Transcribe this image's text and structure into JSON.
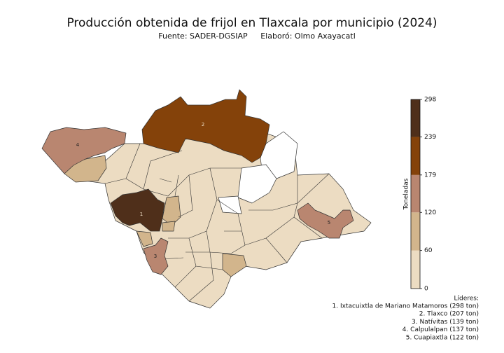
{
  "chart_data": {
    "type": "choropleth",
    "title": "Producción obtenida de frijol en Tlaxcala por municipio (2024)",
    "source": "Fuente: SADER-DGSIAP",
    "author": "Elaboró: Olmo Axayacatl",
    "colorbar": {
      "label": "Toneladas",
      "lim": [
        0,
        298
      ],
      "ticks": [
        0,
        60,
        120,
        179,
        239,
        298
      ],
      "colors": [
        "#ecdcc2",
        "#d2b58c",
        "#b98670",
        "#84420a",
        "#4f2f1a"
      ]
    },
    "leaders": {
      "title": "Líderes:",
      "items": [
        {
          "rank": 1,
          "label": "1. Ixtacuixtla de Mariano Matamoros (298 ton)",
          "value": 298
        },
        {
          "rank": 2,
          "label": "2. Tlaxco (207 ton)",
          "value": 207
        },
        {
          "rank": 3,
          "label": "3. Natívitas (139 ton)",
          "value": 139
        },
        {
          "rank": 4,
          "label": "4. Calpulalpan (137 ton)",
          "value": 137
        },
        {
          "rank": 5,
          "label": "5. Cuapiaxtla (122 ton)",
          "value": 122
        }
      ]
    }
  }
}
